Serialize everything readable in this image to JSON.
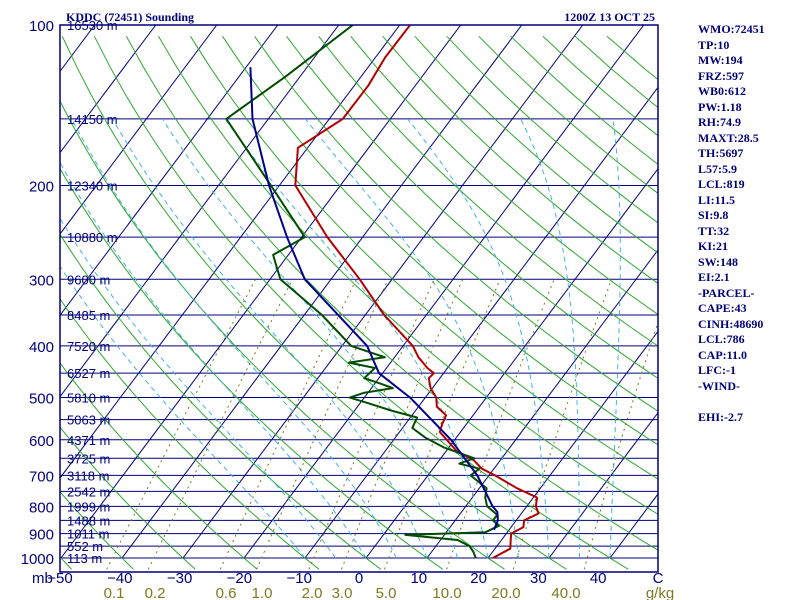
{
  "chart_data": {
    "type": "skew-t log-p sounding",
    "title": "KDDC (72451) Sounding",
    "valid_time": "1200Z 13 OCT 25",
    "pressure_levels_mb": [
      100,
      200,
      300,
      400,
      500,
      600,
      700,
      800,
      900,
      1000
    ],
    "pressure_axis_label": "mb",
    "pressure_range_mb": [
      1000,
      100
    ],
    "height_lines": [
      {
        "label": "16530 m",
        "p": 100
      },
      {
        "label": "14150 m",
        "p": 150
      },
      {
        "label": "12340 m",
        "p": 200
      },
      {
        "label": "10880 m",
        "p": 250
      },
      {
        "label": "9600 m",
        "p": 300
      },
      {
        "label": "8485 m",
        "p": 350
      },
      {
        "label": "7520 m",
        "p": 400
      },
      {
        "label": "6527 m",
        "p": 450
      },
      {
        "label": "5810 m",
        "p": 500
      },
      {
        "label": "5063 m",
        "p": 550
      },
      {
        "label": "4371 m",
        "p": 600
      },
      {
        "label": "3725 m",
        "p": 650
      },
      {
        "label": "3118 m",
        "p": 700
      },
      {
        "label": "2542 m",
        "p": 750
      },
      {
        "label": "1999 m",
        "p": 800
      },
      {
        "label": "1488 m",
        "p": 850
      },
      {
        "label": "1011 m",
        "p": 900
      },
      {
        "label": "552 m",
        "p": 950
      },
      {
        "label": "113 m",
        "p": 1000
      }
    ],
    "temperature_ticks": [
      "−50",
      "−40",
      "−30",
      "−20",
      "−10",
      "0",
      "10",
      "20",
      "30",
      "40",
      "C"
    ],
    "temperature_range_c": [
      -50,
      50
    ],
    "mixing_ratio_ticks": [
      "0.1",
      "0.2",
      "0.6",
      "1.0",
      "2.0",
      "3.0",
      "5.0",
      "10.0",
      "20.0",
      "40.0",
      "g/kg"
    ],
    "series": [
      {
        "name": "Temperature",
        "units": "C",
        "color": "#b30000",
        "points": [
          [
            1000,
            20.8
          ],
          [
            960,
            22.5
          ],
          [
            925,
            21.5
          ],
          [
            900,
            20.8
          ],
          [
            875,
            22.0
          ],
          [
            850,
            21.3
          ],
          [
            825,
            22.8
          ],
          [
            800,
            21.5
          ],
          [
            770,
            20.6
          ],
          [
            740,
            16.2
          ],
          [
            700,
            11.0
          ],
          [
            680,
            8.0
          ],
          [
            655,
            5.6
          ],
          [
            630,
            1.7
          ],
          [
            600,
            -1.3
          ],
          [
            580,
            -3.4
          ],
          [
            560,
            -4.0
          ],
          [
            540,
            -4.4
          ],
          [
            520,
            -7.0
          ],
          [
            500,
            -8.2
          ],
          [
            480,
            -10.3
          ],
          [
            460,
            -11.8
          ],
          [
            450,
            -11.6
          ],
          [
            440,
            -13.3
          ],
          [
            420,
            -16.1
          ],
          [
            400,
            -18.4
          ],
          [
            350,
            -26.9
          ],
          [
            300,
            -35.3
          ],
          [
            250,
            -45.8
          ],
          [
            200,
            -57.4
          ],
          [
            170,
            -61.6
          ],
          [
            150,
            -57.8
          ],
          [
            130,
            -57.7
          ],
          [
            115,
            -58.4
          ],
          [
            100,
            -58.3
          ]
        ]
      },
      {
        "name": "Dewpoint",
        "units": "C",
        "color": "#004d00",
        "points": [
          [
            1000,
            18.0
          ],
          [
            975,
            16.9
          ],
          [
            950,
            15.5
          ],
          [
            925,
            12.8
          ],
          [
            905,
            3.6
          ],
          [
            895,
            16.4
          ],
          [
            870,
            17.8
          ],
          [
            850,
            16.2
          ],
          [
            830,
            16.2
          ],
          [
            800,
            13.5
          ],
          [
            770,
            12.1
          ],
          [
            740,
            11.2
          ],
          [
            700,
            7.0
          ],
          [
            680,
            7.6
          ],
          [
            665,
            3.7
          ],
          [
            650,
            5.5
          ],
          [
            620,
            -0.9
          ],
          [
            595,
            -5.0
          ],
          [
            570,
            -8.4
          ],
          [
            545,
            -8.9
          ],
          [
            530,
            -13.7
          ],
          [
            510,
            -19.4
          ],
          [
            500,
            -22.4
          ],
          [
            490,
            -20.7
          ],
          [
            480,
            -16.5
          ],
          [
            470,
            -19.3
          ],
          [
            460,
            -22.4
          ],
          [
            440,
            -21.9
          ],
          [
            430,
            -26.8
          ],
          [
            420,
            -21.6
          ],
          [
            400,
            -28.5
          ],
          [
            350,
            -37.1
          ],
          [
            300,
            -48.3
          ],
          [
            270,
            -52.5
          ],
          [
            250,
            -49.5
          ],
          [
            200,
            -61.4
          ],
          [
            150,
            -76.9
          ],
          [
            125,
            -72.4
          ],
          [
            100,
            -67.7
          ]
        ]
      },
      {
        "name": "Parcel",
        "units": "C",
        "color": "#00008b",
        "points": [
          [
            885,
            17.5
          ],
          [
            850,
            17.0
          ],
          [
            820,
            15.9
          ],
          [
            800,
            14.4
          ],
          [
            700,
            8.1
          ],
          [
            600,
            -0.6
          ],
          [
            500,
            -12.5
          ],
          [
            450,
            -20.6
          ],
          [
            400,
            -25.9
          ],
          [
            300,
            -44.3
          ],
          [
            250,
            -52.4
          ],
          [
            200,
            -61.7
          ],
          [
            150,
            -72.6
          ],
          [
            120,
            -79.3
          ]
        ]
      }
    ],
    "reference_lines": [
      "isotherms",
      "isobars",
      "dry adiabats",
      "moist adiabats",
      "mixing ratio lines"
    ],
    "grid": true,
    "legend": "none"
  },
  "indices": [
    "WMO:72451",
    "TP:10",
    "MW:194",
    "FRZ:597",
    "WB0:612",
    "PW:1.18",
    "RH:74.9",
    "MAXT:28.5",
    "TH:5697",
    "L57:5.9",
    "LCL:819",
    "LI:11.5",
    "SI:9.8",
    "TT:32",
    "KI:21",
    "SW:148",
    "EI:2.1",
    "-PARCEL-",
    "CAPE:43",
    "CINH:48690",
    "LCL:786",
    "CAP:11.0",
    "LFC:-1",
    "-WIND-",
    "",
    "EHI:-2.7"
  ],
  "colors": {
    "frame": "#00007a",
    "isotherm": "#00007a",
    "isobar": "#00007a",
    "dry_adiabat": "#2ea82e",
    "moist_adiabat": "#40b4e0",
    "mixing_ratio": "#7a7a1e"
  }
}
